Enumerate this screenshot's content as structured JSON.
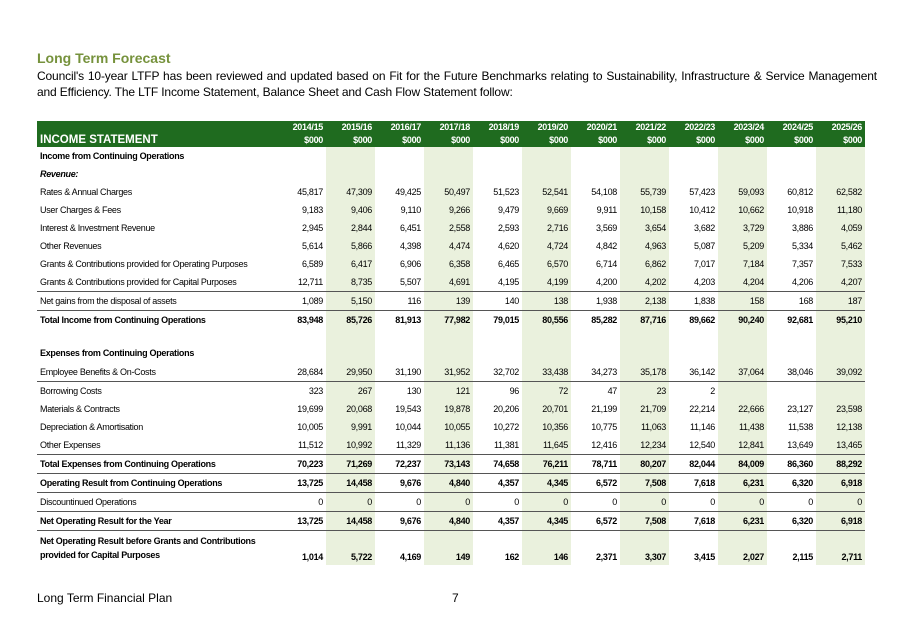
{
  "heading": "Long Term Forecast",
  "intro": "Council's 10-year LTFP has been reviewed and updated based on Fit for the Future Benchmarks relating to Sustainability, Infrastructure & Service Management and Efficiency. The LTF Income Statement, Balance Sheet and Cash Flow Statement follow:",
  "table": {
    "title": "INCOME STATEMENT",
    "years": [
      "2014/15",
      "2015/16",
      "2016/17",
      "2017/18",
      "2018/19",
      "2019/20",
      "2020/21",
      "2021/22",
      "2022/23",
      "2023/24",
      "2024/25",
      "2025/26"
    ],
    "unit": "$000",
    "shaded_cols": [
      1,
      3,
      5,
      7,
      9,
      11
    ],
    "rows": [
      {
        "label": "Income from Continuing Operations",
        "values": [],
        "style": "bold"
      },
      {
        "label": "Revenue:",
        "values": [],
        "style": "ital"
      },
      {
        "label": "Rates & Annual Charges",
        "values": [
          "45,817",
          "47,309",
          "49,425",
          "50,497",
          "51,523",
          "52,541",
          "54,108",
          "55,739",
          "57,423",
          "59,093",
          "60,812",
          "62,582"
        ]
      },
      {
        "label": "User Charges & Fees",
        "values": [
          "9,183",
          "9,406",
          "9,110",
          "9,266",
          "9,479",
          "9,669",
          "9,911",
          "10,158",
          "10,412",
          "10,662",
          "10,918",
          "11,180"
        ]
      },
      {
        "label": "Interest & Investment Revenue",
        "values": [
          "2,945",
          "2,844",
          "6,451",
          "2,558",
          "2,593",
          "2,716",
          "3,569",
          "3,654",
          "3,682",
          "3,729",
          "3,886",
          "4,059"
        ]
      },
      {
        "label": "Other Revenues",
        "values": [
          "5,614",
          "5,866",
          "4,398",
          "4,474",
          "4,620",
          "4,724",
          "4,842",
          "4,963",
          "5,087",
          "5,209",
          "5,334",
          "5,462"
        ]
      },
      {
        "label": "Grants & Contributions provided for Operating Purposes",
        "values": [
          "6,589",
          "6,417",
          "6,906",
          "6,358",
          "6,465",
          "6,570",
          "6,714",
          "6,862",
          "7,017",
          "7,184",
          "7,357",
          "7,533"
        ]
      },
      {
        "label": "Grants & Contributions provided for Capital Purposes",
        "values": [
          "12,711",
          "8,735",
          "5,507",
          "4,691",
          "4,195",
          "4,199",
          "4,200",
          "4,202",
          "4,203",
          "4,204",
          "4,206",
          "4,207"
        ]
      },
      {
        "label": "Net gains from the disposal of assets",
        "values": [
          "1,089",
          "5,150",
          "116",
          "139",
          "140",
          "138",
          "1,938",
          "2,138",
          "1,838",
          "158",
          "168",
          "187"
        ],
        "style": "bt"
      },
      {
        "label": "Total Income from Continuing Operations",
        "values": [
          "83,948",
          "85,726",
          "81,913",
          "77,982",
          "79,015",
          "80,556",
          "85,282",
          "87,716",
          "89,662",
          "90,240",
          "92,681",
          "95,210"
        ],
        "style": "bold bt"
      },
      {
        "label": "Expenses from Continuing Operations",
        "values": [],
        "style": "bold tall"
      },
      {
        "label": "Employee Benefits & On-Costs",
        "values": [
          "28,684",
          "29,950",
          "31,190",
          "31,952",
          "32,702",
          "33,438",
          "34,273",
          "35,178",
          "36,142",
          "37,064",
          "38,046",
          "39,092"
        ]
      },
      {
        "label": "Borrowing Costs",
        "values": [
          "323",
          "267",
          "130",
          "121",
          "96",
          "72",
          "47",
          "23",
          "2",
          "",
          "",
          ""
        ],
        "style": "bt"
      },
      {
        "label": "Materials & Contracts",
        "values": [
          "19,699",
          "20,068",
          "19,543",
          "19,878",
          "20,206",
          "20,701",
          "21,199",
          "21,709",
          "22,214",
          "22,666",
          "23,127",
          "23,598"
        ]
      },
      {
        "label": "Depreciation & Amortisation",
        "values": [
          "10,005",
          "9,991",
          "10,044",
          "10,055",
          "10,272",
          "10,356",
          "10,775",
          "11,063",
          "11,146",
          "11,438",
          "11,538",
          "12,138"
        ]
      },
      {
        "label": "Other Expenses",
        "values": [
          "11,512",
          "10,992",
          "11,329",
          "11,136",
          "11,381",
          "11,645",
          "12,416",
          "12,234",
          "12,540",
          "12,841",
          "13,649",
          "13,465"
        ]
      },
      {
        "label": "Total Expenses from Continuing Operations",
        "values": [
          "70,223",
          "71,269",
          "72,237",
          "73,143",
          "74,658",
          "76,211",
          "78,711",
          "80,207",
          "82,044",
          "84,009",
          "86,360",
          "88,292"
        ],
        "style": "bold bt bb"
      },
      {
        "label": "Operating Result from Continuing Operations",
        "values": [
          "13,725",
          "14,458",
          "9,676",
          "4,840",
          "4,357",
          "4,345",
          "6,572",
          "7,508",
          "7,618",
          "6,231",
          "6,320",
          "6,918"
        ],
        "style": "bold bb"
      },
      {
        "label": "Discountinued Operations",
        "values": [
          "0",
          "0",
          "0",
          "0",
          "0",
          "0",
          "0",
          "0",
          "0",
          "0",
          "0",
          "0"
        ],
        "style": "bb"
      },
      {
        "label": "Net Operating Result for the Year",
        "values": [
          "13,725",
          "14,458",
          "9,676",
          "4,840",
          "4,357",
          "4,345",
          "6,572",
          "7,508",
          "7,618",
          "6,231",
          "6,320",
          "6,918"
        ],
        "style": "bold bb"
      },
      {
        "label": "Net Operating Result before Grants and Contributions provided for Capital Purposes",
        "values": [
          "1,014",
          "5,722",
          "4,169",
          "149",
          "162",
          "146",
          "2,371",
          "3,307",
          "3,415",
          "2,027",
          "2,115",
          "2,711"
        ],
        "style": "bold tall"
      }
    ]
  },
  "footer": {
    "left": "Long Term Financial Plan",
    "page": "7"
  }
}
